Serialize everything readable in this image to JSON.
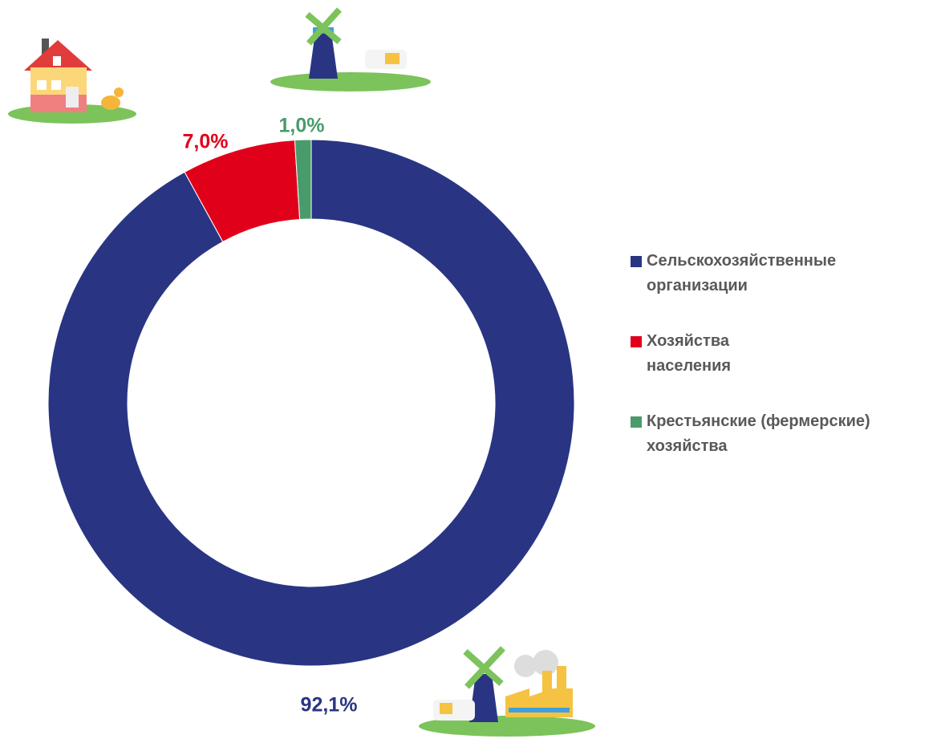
{
  "chart_data": {
    "type": "donut",
    "categories": [
      "Сельскохозяйственные организации",
      "Хозяйства населения",
      "Крестьянские (фермерские) хозяйства"
    ],
    "values": [
      92.1,
      7.0,
      1.0
    ],
    "value_labels": [
      "92,1%",
      "7,0%",
      "1,0%"
    ],
    "colors": [
      "#293583",
      "#e1001a",
      "#4a9b6b"
    ]
  }
}
